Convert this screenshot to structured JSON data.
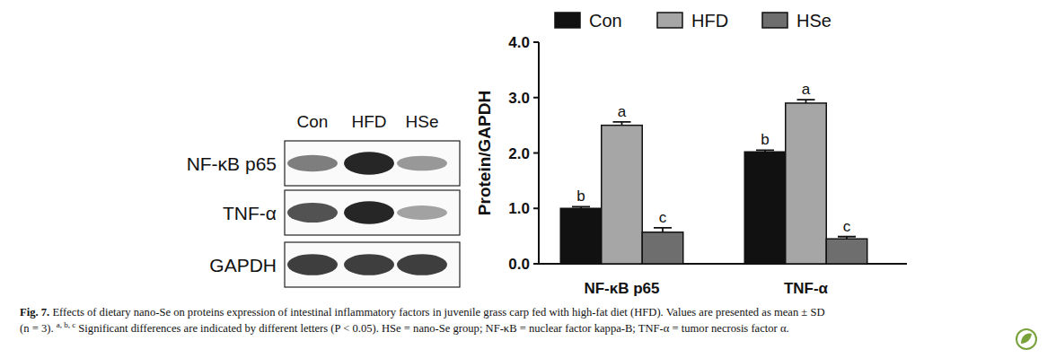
{
  "chart_data": {
    "type": "bar",
    "y_label": "Protein/GAPDH",
    "categories": [
      "NF-κB p65",
      "TNF-α"
    ],
    "series": [
      {
        "name": "Con",
        "color": "#111111",
        "values": [
          1.0,
          2.02
        ],
        "errors": [
          0.03,
          0.03
        ],
        "letters": [
          "b",
          "b"
        ]
      },
      {
        "name": "HFD",
        "color": "#a6a6a6",
        "values": [
          2.5,
          2.9
        ],
        "errors": [
          0.06,
          0.06
        ],
        "letters": [
          "a",
          "a"
        ]
      },
      {
        "name": "HSe",
        "color": "#6e6e6e",
        "values": [
          0.57,
          0.45
        ],
        "errors": [
          0.08,
          0.04
        ],
        "letters": [
          "c",
          "c"
        ]
      }
    ],
    "ylim": [
      0,
      4
    ],
    "yticks": [
      {
        "value": 0,
        "label": "0.0"
      },
      {
        "value": 1,
        "label": "1.0"
      },
      {
        "value": 2,
        "label": "2.0"
      },
      {
        "value": 3,
        "label": "3.0"
      },
      {
        "value": 4,
        "label": "4.0"
      }
    ],
    "grid": false,
    "legend": "top"
  },
  "blot": {
    "lanes": [
      "Con",
      "HFD",
      "HSe"
    ],
    "rows": [
      "NF-κB p65",
      "TNF-α",
      "GAPDH"
    ]
  },
  "caption": {
    "lines": [
      [
        {
          "text": "Fig. 7.",
          "bold": true
        },
        {
          "text": " Effects of dietary nano-Se on proteins expression of intestinal inflammatory factors in juvenile grass carp fed with high-fat diet (HFD). Values are presented as mean ± SD"
        }
      ],
      [
        {
          "text": "(n = 3). "
        },
        {
          "text": "a, b, c",
          "sup": true
        },
        {
          "text": " Significant differences are indicated by different letters (P < 0.05). HSe = nano-Se group; NF-κB = nuclear factor kappa-B; TNF-α = tumor necrosis factor α."
        }
      ]
    ]
  }
}
